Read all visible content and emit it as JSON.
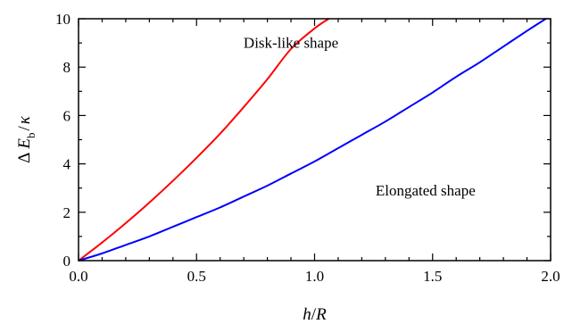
{
  "chart_data": {
    "type": "line",
    "xlabel": {
      "main": "h",
      "sep": "/",
      "tail": "R"
    },
    "ylabel": {
      "delta": "Δ",
      "main": "E",
      "sub": "b",
      "sep": "/",
      "tail": "κ"
    },
    "xlim": [
      0,
      2
    ],
    "ylim": [
      0,
      10
    ],
    "xticks": [
      0.0,
      0.5,
      1.0,
      1.5,
      2.0
    ],
    "xtick_labels": [
      "0.0",
      "0.5",
      "1.0",
      "1.5",
      "2.0"
    ],
    "yticks": [
      0,
      2,
      4,
      6,
      8,
      10
    ],
    "ytick_labels": [
      "0",
      "2",
      "4",
      "6",
      "8",
      "10"
    ],
    "x_minor_step": 0.1,
    "y_minor_step": 1,
    "grid": false,
    "series": [
      {
        "name": "Disk-like shape",
        "color": "#ff0000",
        "x": [
          0,
          0.1,
          0.2,
          0.3,
          0.4,
          0.5,
          0.6,
          0.7,
          0.8,
          0.9,
          1.0,
          1.06
        ],
        "y": [
          0,
          0.75,
          1.55,
          2.4,
          3.3,
          4.25,
          5.25,
          6.35,
          7.5,
          8.75,
          9.6,
          10.0
        ]
      },
      {
        "name": "Elongated shape",
        "color": "#0000ff",
        "x": [
          0,
          0.1,
          0.2,
          0.3,
          0.4,
          0.5,
          0.6,
          0.7,
          0.8,
          0.9,
          1.0,
          1.1,
          1.2,
          1.3,
          1.4,
          1.5,
          1.6,
          1.7,
          1.8,
          1.9,
          1.98
        ],
        "y": [
          0,
          0.3,
          0.65,
          1.0,
          1.4,
          1.8,
          2.2,
          2.65,
          3.1,
          3.6,
          4.1,
          4.65,
          5.2,
          5.75,
          6.35,
          6.95,
          7.6,
          8.2,
          8.85,
          9.5,
          10.0
        ]
      }
    ],
    "annotations": [
      {
        "text": "Disk-like shape",
        "x": 0.9,
        "y": 8.8
      },
      {
        "text": "Elongated shape",
        "x": 1.47,
        "y": 2.7
      }
    ]
  }
}
